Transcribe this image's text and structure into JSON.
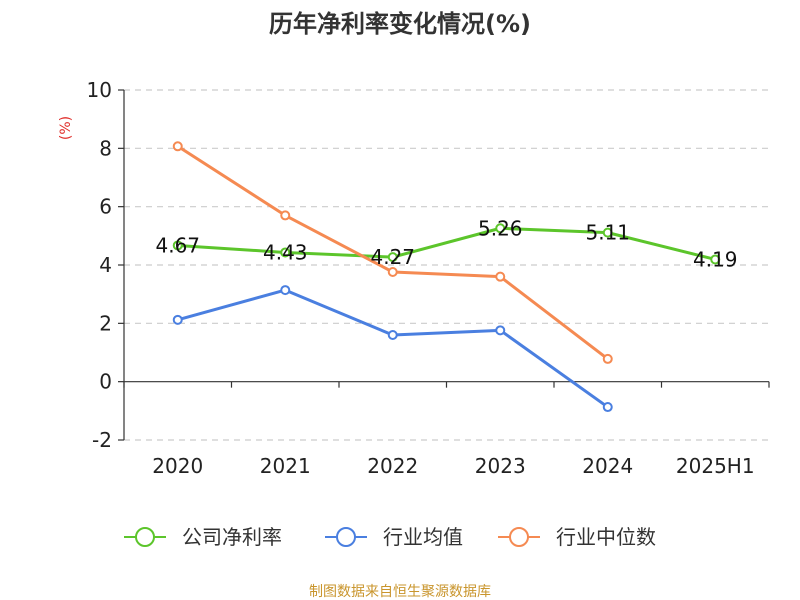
{
  "chart_data": {
    "type": "line",
    "title": "历年净利率变化情况(%)",
    "ylabel": "(%)",
    "categories": [
      "2020",
      "2021",
      "2022",
      "2023",
      "2024",
      "2025H1"
    ],
    "ylim": [
      -2,
      10
    ],
    "yticks": [
      -2,
      0,
      2,
      4,
      6,
      8,
      10
    ],
    "grid": true,
    "legend_position": "bottom",
    "series": [
      {
        "name": "公司净利率",
        "color": "#5cc52b",
        "values": [
          4.67,
          4.43,
          4.27,
          5.26,
          5.11,
          4.19
        ],
        "labels": [
          "4.67",
          "4.43",
          "4.27",
          "5.26",
          "5.11",
          "4.19"
        ]
      },
      {
        "name": "行业均值",
        "color": "#4a7fe0",
        "values": [
          2.12,
          3.14,
          1.6,
          1.76,
          -0.87,
          null
        ]
      },
      {
        "name": "行业中位数",
        "color": "#f58a52",
        "values": [
          8.07,
          5.7,
          3.76,
          3.6,
          0.78,
          null
        ]
      }
    ],
    "source": "制图数据来自恒生聚源数据库"
  }
}
